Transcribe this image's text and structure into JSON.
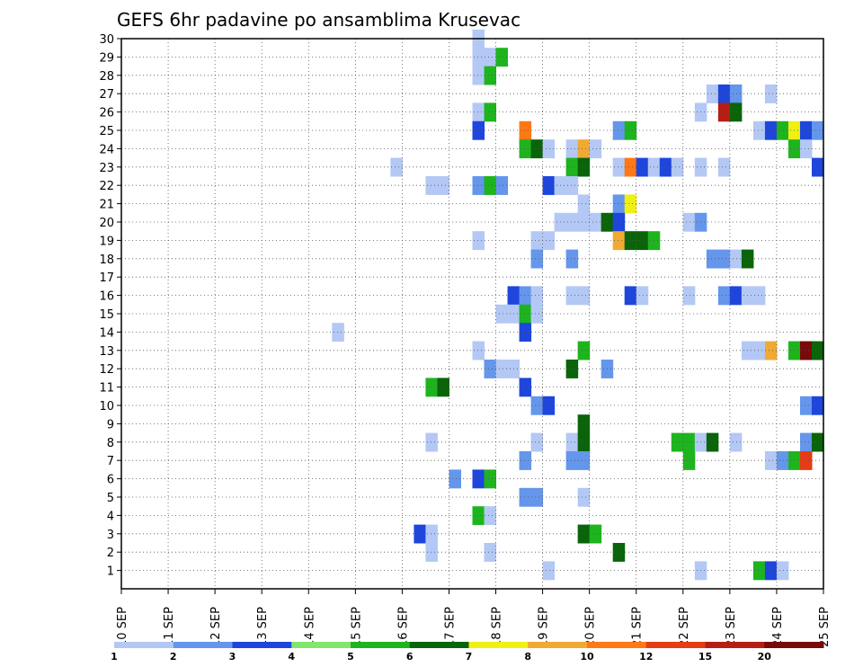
{
  "chart_data": {
    "type": "heatmap",
    "title": "GEFS 6hr padavine po ansamblima Krusevac",
    "xlabel": "",
    "ylabel": "",
    "x_ticks": [
      "10 SEP",
      "11 SEP",
      "12 SEP",
      "13 SEP",
      "14 SEP",
      "15 SEP",
      "16 SEP",
      "17 SEP",
      "18 SEP",
      "19 SEP",
      "20 SEP",
      "21 SEP",
      "22 SEP",
      "23 SEP",
      "24 SEP",
      "25 SEP"
    ],
    "xlim": [
      0,
      15
    ],
    "y_ticks": [
      1,
      2,
      3,
      4,
      5,
      6,
      7,
      8,
      9,
      10,
      11,
      12,
      13,
      14,
      15,
      16,
      17,
      18,
      19,
      20,
      21,
      22,
      23,
      24,
      25,
      26,
      27,
      28,
      29,
      30
    ],
    "ylim": [
      0,
      30
    ],
    "grid": true,
    "legend": {
      "placement": "bottom",
      "labels": [
        "1",
        "2",
        "3",
        "4",
        "5",
        "6",
        "7",
        "8",
        "10",
        "12",
        "15",
        "20"
      ],
      "colors": [
        "#b4c8f5",
        "#6496eb",
        "#1e46dc",
        "#82e66e",
        "#1eb41e",
        "#0a640a",
        "#f0f014",
        "#f0aa32",
        "#ff7814",
        "#e63c14",
        "#b41e14",
        "#780a0a"
      ]
    },
    "cells": [
      {
        "member": 30,
        "day": 7.75,
        "c": 1
      },
      {
        "member": 29,
        "day": 7.75,
        "c": 1
      },
      {
        "member": 29,
        "day": 8.0,
        "c": 1
      },
      {
        "member": 29,
        "day": 8.25,
        "c": 5
      },
      {
        "member": 28,
        "day": 7.75,
        "c": 1
      },
      {
        "member": 28,
        "day": 8.0,
        "c": 5
      },
      {
        "member": 27,
        "day": 12.75,
        "c": 1
      },
      {
        "member": 27,
        "day": 13.0,
        "c": 3
      },
      {
        "member": 27,
        "day": 13.25,
        "c": 2
      },
      {
        "member": 27,
        "day": 14.0,
        "c": 1
      },
      {
        "member": 26,
        "day": 7.75,
        "c": 1
      },
      {
        "member": 26,
        "day": 8.0,
        "c": 5
      },
      {
        "member": 26,
        "day": 12.5,
        "c": 1
      },
      {
        "member": 26,
        "day": 13.0,
        "c": 11
      },
      {
        "member": 26,
        "day": 13.25,
        "c": 6
      },
      {
        "member": 25,
        "day": 7.75,
        "c": 3
      },
      {
        "member": 25,
        "day": 8.75,
        "c": 9
      },
      {
        "member": 25,
        "day": 10.75,
        "c": 2
      },
      {
        "member": 25,
        "day": 11.0,
        "c": 5
      },
      {
        "member": 25,
        "day": 13.75,
        "c": 1
      },
      {
        "member": 25,
        "day": 14.0,
        "c": 3
      },
      {
        "member": 25,
        "day": 14.25,
        "c": 5
      },
      {
        "member": 25,
        "day": 14.5,
        "c": 7
      },
      {
        "member": 25,
        "day": 14.75,
        "c": 3
      },
      {
        "member": 25,
        "day": 15.0,
        "c": 2
      },
      {
        "member": 24,
        "day": 8.75,
        "c": 5
      },
      {
        "member": 24,
        "day": 9.0,
        "c": 6
      },
      {
        "member": 24,
        "day": 9.25,
        "c": 1
      },
      {
        "member": 24,
        "day": 9.75,
        "c": 1
      },
      {
        "member": 24,
        "day": 10.0,
        "c": 8
      },
      {
        "member": 24,
        "day": 10.25,
        "c": 1
      },
      {
        "member": 24,
        "day": 14.5,
        "c": 5
      },
      {
        "member": 24,
        "day": 14.75,
        "c": 1
      },
      {
        "member": 23,
        "day": 6.0,
        "c": 1
      },
      {
        "member": 23,
        "day": 9.75,
        "c": 5
      },
      {
        "member": 23,
        "day": 10.0,
        "c": 6
      },
      {
        "member": 23,
        "day": 10.75,
        "c": 1
      },
      {
        "member": 23,
        "day": 11.0,
        "c": 9
      },
      {
        "member": 23,
        "day": 11.25,
        "c": 3
      },
      {
        "member": 23,
        "day": 11.5,
        "c": 1
      },
      {
        "member": 23,
        "day": 11.75,
        "c": 3
      },
      {
        "member": 23,
        "day": 12.0,
        "c": 1
      },
      {
        "member": 23,
        "day": 12.5,
        "c": 1
      },
      {
        "member": 23,
        "day": 13.0,
        "c": 1
      },
      {
        "member": 23,
        "day": 15.0,
        "c": 3
      },
      {
        "member": 22,
        "day": 6.75,
        "c": 1
      },
      {
        "member": 22,
        "day": 7.0,
        "c": 1
      },
      {
        "member": 22,
        "day": 7.75,
        "c": 2
      },
      {
        "member": 22,
        "day": 8.0,
        "c": 5
      },
      {
        "member": 22,
        "day": 8.25,
        "c": 2
      },
      {
        "member": 22,
        "day": 9.25,
        "c": 3
      },
      {
        "member": 22,
        "day": 9.5,
        "c": 1
      },
      {
        "member": 22,
        "day": 9.75,
        "c": 1
      },
      {
        "member": 21,
        "day": 10.0,
        "c": 1
      },
      {
        "member": 21,
        "day": 10.75,
        "c": 2
      },
      {
        "member": 21,
        "day": 11.0,
        "c": 7
      },
      {
        "member": 20,
        "day": 9.5,
        "c": 1
      },
      {
        "member": 20,
        "day": 9.75,
        "c": 1
      },
      {
        "member": 20,
        "day": 10.0,
        "c": 1
      },
      {
        "member": 20,
        "day": 10.25,
        "c": 1
      },
      {
        "member": 20,
        "day": 10.5,
        "c": 6
      },
      {
        "member": 20,
        "day": 10.75,
        "c": 3
      },
      {
        "member": 20,
        "day": 12.25,
        "c": 1
      },
      {
        "member": 20,
        "day": 12.5,
        "c": 2
      },
      {
        "member": 19,
        "day": 7.75,
        "c": 1
      },
      {
        "member": 19,
        "day": 9.0,
        "c": 1
      },
      {
        "member": 19,
        "day": 9.25,
        "c": 1
      },
      {
        "member": 19,
        "day": 10.75,
        "c": 8
      },
      {
        "member": 19,
        "day": 11.0,
        "c": 6
      },
      {
        "member": 19,
        "day": 11.25,
        "c": 6
      },
      {
        "member": 19,
        "day": 11.5,
        "c": 5
      },
      {
        "member": 18,
        "day": 9.0,
        "c": 2
      },
      {
        "member": 18,
        "day": 9.75,
        "c": 2
      },
      {
        "member": 18,
        "day": 12.75,
        "c": 2
      },
      {
        "member": 18,
        "day": 13.0,
        "c": 2
      },
      {
        "member": 18,
        "day": 13.25,
        "c": 1
      },
      {
        "member": 18,
        "day": 13.5,
        "c": 6
      },
      {
        "member": 16,
        "day": 8.5,
        "c": 3
      },
      {
        "member": 16,
        "day": 8.75,
        "c": 2
      },
      {
        "member": 16,
        "day": 9.0,
        "c": 1
      },
      {
        "member": 16,
        "day": 9.75,
        "c": 1
      },
      {
        "member": 16,
        "day": 10.0,
        "c": 1
      },
      {
        "member": 16,
        "day": 11.0,
        "c": 3
      },
      {
        "member": 16,
        "day": 11.25,
        "c": 1
      },
      {
        "member": 16,
        "day": 12.25,
        "c": 1
      },
      {
        "member": 16,
        "day": 13.0,
        "c": 2
      },
      {
        "member": 16,
        "day": 13.25,
        "c": 3
      },
      {
        "member": 16,
        "day": 13.5,
        "c": 1
      },
      {
        "member": 16,
        "day": 13.75,
        "c": 1
      },
      {
        "member": 15,
        "day": 8.25,
        "c": 1
      },
      {
        "member": 15,
        "day": 8.5,
        "c": 1
      },
      {
        "member": 15,
        "day": 8.75,
        "c": 5
      },
      {
        "member": 15,
        "day": 9.0,
        "c": 1
      },
      {
        "member": 14,
        "day": 4.75,
        "c": 1
      },
      {
        "member": 14,
        "day": 8.75,
        "c": 3
      },
      {
        "member": 13,
        "day": 7.75,
        "c": 1
      },
      {
        "member": 13,
        "day": 10.0,
        "c": 5
      },
      {
        "member": 13,
        "day": 13.5,
        "c": 1
      },
      {
        "member": 13,
        "day": 13.75,
        "c": 1
      },
      {
        "member": 13,
        "day": 14.0,
        "c": 8
      },
      {
        "member": 13,
        "day": 14.5,
        "c": 5
      },
      {
        "member": 13,
        "day": 14.75,
        "c": 12
      },
      {
        "member": 13,
        "day": 15.0,
        "c": 6
      },
      {
        "member": 12,
        "day": 8.0,
        "c": 2
      },
      {
        "member": 12,
        "day": 8.25,
        "c": 1
      },
      {
        "member": 12,
        "day": 8.5,
        "c": 1
      },
      {
        "member": 12,
        "day": 9.75,
        "c": 6
      },
      {
        "member": 12,
        "day": 10.5,
        "c": 2
      },
      {
        "member": 11,
        "day": 6.75,
        "c": 5
      },
      {
        "member": 11,
        "day": 7.0,
        "c": 6
      },
      {
        "member": 11,
        "day": 8.75,
        "c": 3
      },
      {
        "member": 10,
        "day": 9.0,
        "c": 2
      },
      {
        "member": 10,
        "day": 9.25,
        "c": 3
      },
      {
        "member": 10,
        "day": 14.75,
        "c": 2
      },
      {
        "member": 10,
        "day": 15.0,
        "c": 3
      },
      {
        "member": 9,
        "day": 10.0,
        "c": 6
      },
      {
        "member": 8,
        "day": 6.75,
        "c": 1
      },
      {
        "member": 8,
        "day": 9.0,
        "c": 1
      },
      {
        "member": 8,
        "day": 9.75,
        "c": 1
      },
      {
        "member": 8,
        "day": 10.0,
        "c": 6
      },
      {
        "member": 8,
        "day": 12.0,
        "c": 5
      },
      {
        "member": 8,
        "day": 12.25,
        "c": 5
      },
      {
        "member": 8,
        "day": 12.5,
        "c": 1
      },
      {
        "member": 8,
        "day": 12.75,
        "c": 6
      },
      {
        "member": 8,
        "day": 13.25,
        "c": 1
      },
      {
        "member": 8,
        "day": 14.75,
        "c": 2
      },
      {
        "member": 8,
        "day": 15.0,
        "c": 6
      },
      {
        "member": 7,
        "day": 8.75,
        "c": 2
      },
      {
        "member": 7,
        "day": 9.75,
        "c": 2
      },
      {
        "member": 7,
        "day": 10.0,
        "c": 2
      },
      {
        "member": 7,
        "day": 12.25,
        "c": 5
      },
      {
        "member": 7,
        "day": 14.0,
        "c": 1
      },
      {
        "member": 7,
        "day": 14.25,
        "c": 2
      },
      {
        "member": 7,
        "day": 14.5,
        "c": 5
      },
      {
        "member": 7,
        "day": 14.75,
        "c": 10
      },
      {
        "member": 6,
        "day": 7.25,
        "c": 2
      },
      {
        "member": 6,
        "day": 7.75,
        "c": 3
      },
      {
        "member": 6,
        "day": 8.0,
        "c": 5
      },
      {
        "member": 5,
        "day": 8.75,
        "c": 2
      },
      {
        "member": 5,
        "day": 9.0,
        "c": 2
      },
      {
        "member": 5,
        "day": 10.0,
        "c": 1
      },
      {
        "member": 4,
        "day": 7.75,
        "c": 5
      },
      {
        "member": 4,
        "day": 8.0,
        "c": 1
      },
      {
        "member": 3,
        "day": 6.5,
        "c": 3
      },
      {
        "member": 3,
        "day": 6.75,
        "c": 1
      },
      {
        "member": 3,
        "day": 10.0,
        "c": 6
      },
      {
        "member": 3,
        "day": 10.25,
        "c": 5
      },
      {
        "member": 2,
        "day": 6.75,
        "c": 1
      },
      {
        "member": 2,
        "day": 8.0,
        "c": 1
      },
      {
        "member": 2,
        "day": 10.75,
        "c": 6
      },
      {
        "member": 1,
        "day": 9.25,
        "c": 1
      },
      {
        "member": 1,
        "day": 12.5,
        "c": 1
      },
      {
        "member": 1,
        "day": 13.75,
        "c": 5
      },
      {
        "member": 1,
        "day": 14.0,
        "c": 3
      },
      {
        "member": 1,
        "day": 14.25,
        "c": 1
      }
    ]
  }
}
